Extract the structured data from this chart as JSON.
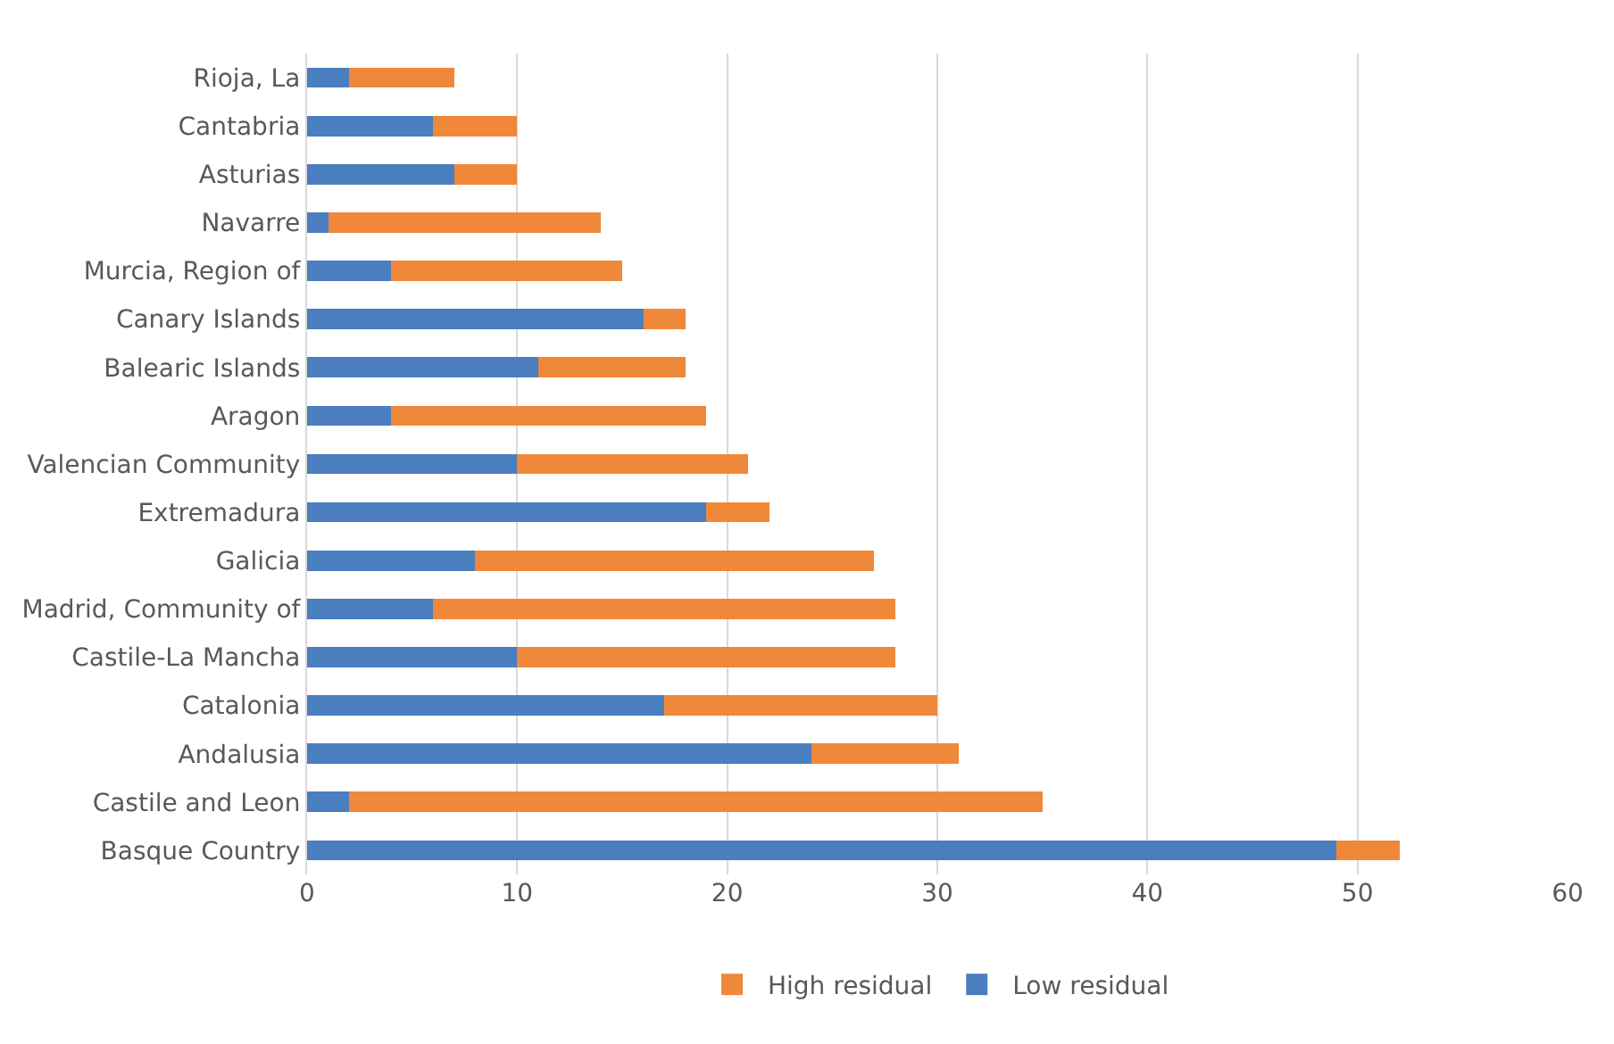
{
  "chart_data": {
    "type": "bar",
    "orientation": "horizontal",
    "stacked": true,
    "categories": [
      "Rioja, La",
      "Cantabria",
      "Asturias",
      "Navarre",
      "Murcia, Region of",
      "Canary Islands",
      "Balearic Islands",
      "Aragon",
      "Valencian Community",
      "Extremadura",
      "Galicia",
      "Madrid, Community of",
      "Castile-La Mancha",
      "Catalonia",
      "Andalusia",
      "Castile and Leon",
      "Basque Country"
    ],
    "series": [
      {
        "name": "Low residual",
        "color": "#4a7ebf",
        "values": [
          2,
          6,
          7,
          1,
          4,
          16,
          11,
          4,
          10,
          19,
          8,
          6,
          10,
          17,
          24,
          2,
          49
        ]
      },
      {
        "name": "High residual",
        "color": "#f0883a",
        "values": [
          5,
          4,
          3,
          13,
          11,
          2,
          7,
          15,
          11,
          3,
          19,
          22,
          18,
          13,
          7,
          33,
          3
        ]
      }
    ],
    "xlim": [
      0,
      60
    ],
    "xticks": [
      0,
      10,
      20,
      30,
      40,
      50,
      60
    ],
    "grid": "x",
    "legend": "bottom"
  }
}
